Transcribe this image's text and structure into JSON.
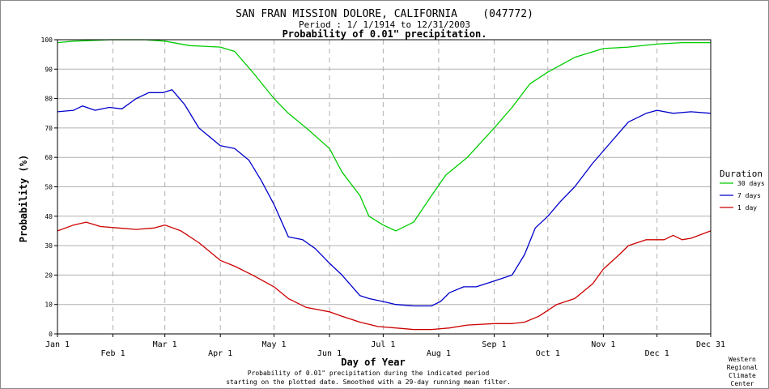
{
  "chart_data": {
    "type": "line",
    "title": "SAN FRAN MISSION DOLORE, CALIFORNIA    (047772)",
    "subtitle": "Period : 1/ 1/1914 to 12/31/2003",
    "title2": "Probability of 0.01\" precipitation.",
    "xlabel": "Day of Year",
    "ylabel": "Probability (%)",
    "ylim": [
      0,
      100
    ],
    "xlim": [
      1,
      366
    ],
    "yticks": [
      "0",
      "10",
      "20",
      "30",
      "40",
      "50",
      "60",
      "70",
      "80",
      "90",
      "100"
    ],
    "xticks": [
      {
        "day": 1,
        "label": "Jan 1"
      },
      {
        "day": 32,
        "label": "Feb 1"
      },
      {
        "day": 61,
        "label": "Mar 1"
      },
      {
        "day": 92,
        "label": "Apr 1"
      },
      {
        "day": 122,
        "label": "May 1"
      },
      {
        "day": 153,
        "label": "Jun 1"
      },
      {
        "day": 183,
        "label": "Jul 1"
      },
      {
        "day": 214,
        "label": "Aug 1"
      },
      {
        "day": 245,
        "label": "Sep 1"
      },
      {
        "day": 275,
        "label": "Oct 1"
      },
      {
        "day": 306,
        "label": "Nov 1"
      },
      {
        "day": 336,
        "label": "Dec 1"
      },
      {
        "day": 366,
        "label": "Dec 31"
      }
    ],
    "grid": true,
    "legend": {
      "title": "Duration",
      "placement": "right"
    },
    "series": [
      {
        "name": "30 days",
        "color": "#00cc00",
        "x": [
          1,
          10,
          30,
          50,
          61,
          75,
          92,
          100,
          110,
          122,
          130,
          140,
          153,
          160,
          170,
          175,
          183,
          190,
          200,
          210,
          218,
          230,
          245,
          255,
          265,
          275,
          290,
          306,
          320,
          336,
          350,
          366
        ],
        "y": [
          99,
          99.5,
          100,
          100,
          99.5,
          98,
          97.5,
          96,
          89,
          80,
          75,
          70,
          63,
          55,
          47,
          40,
          37,
          35,
          38,
          47,
          54,
          60,
          70,
          77,
          85,
          89,
          94,
          97,
          97.5,
          98.5,
          99,
          99
        ]
      },
      {
        "name": "7 days",
        "color": "#0000cc",
        "x": [
          1,
          10,
          15,
          22,
          30,
          37,
          45,
          52,
          60,
          65,
          72,
          80,
          92,
          100,
          108,
          115,
          122,
          130,
          138,
          145,
          153,
          160,
          170,
          175,
          183,
          190,
          200,
          210,
          215,
          220,
          228,
          235,
          245,
          255,
          262,
          268,
          275,
          282,
          290,
          300,
          310,
          320,
          330,
          336,
          345,
          355,
          366
        ],
        "y": [
          75.5,
          76,
          77.5,
          76,
          77,
          76.5,
          80,
          82,
          82,
          83,
          78,
          70,
          64,
          63,
          59,
          52,
          44,
          33,
          32,
          29,
          24,
          20,
          13,
          12,
          11,
          10,
          9.5,
          9.5,
          11,
          14,
          16,
          16,
          18,
          20,
          27,
          36,
          40,
          45,
          50,
          58,
          65,
          72,
          75,
          76,
          75,
          75.5,
          75
        ]
      },
      {
        "name": "1 day",
        "color": "#cc0000",
        "x": [
          1,
          10,
          17,
          25,
          35,
          45,
          55,
          61,
          70,
          80,
          92,
          100,
          110,
          122,
          130,
          140,
          153,
          160,
          170,
          180,
          190,
          200,
          210,
          220,
          230,
          245,
          255,
          262,
          270,
          280,
          290,
          300,
          306,
          315,
          320,
          330,
          340,
          345,
          350,
          355,
          366
        ],
        "y": [
          35,
          37,
          38,
          36.5,
          36,
          35.5,
          36,
          37,
          35,
          31,
          25,
          23,
          20,
          16,
          12,
          9,
          7.5,
          6,
          4,
          2.5,
          2,
          1.5,
          1.5,
          2,
          3,
          3.5,
          3.5,
          4,
          6,
          10,
          12,
          17,
          22,
          27,
          30,
          32,
          32,
          33.5,
          32,
          32.5,
          35
        ]
      }
    ],
    "note": "Probability of 0.01\" precipitation during the indicated period starting on the plotted date. Smoothed with a 29-day running mean filter.",
    "credit": "Western Regional Climate Center"
  }
}
